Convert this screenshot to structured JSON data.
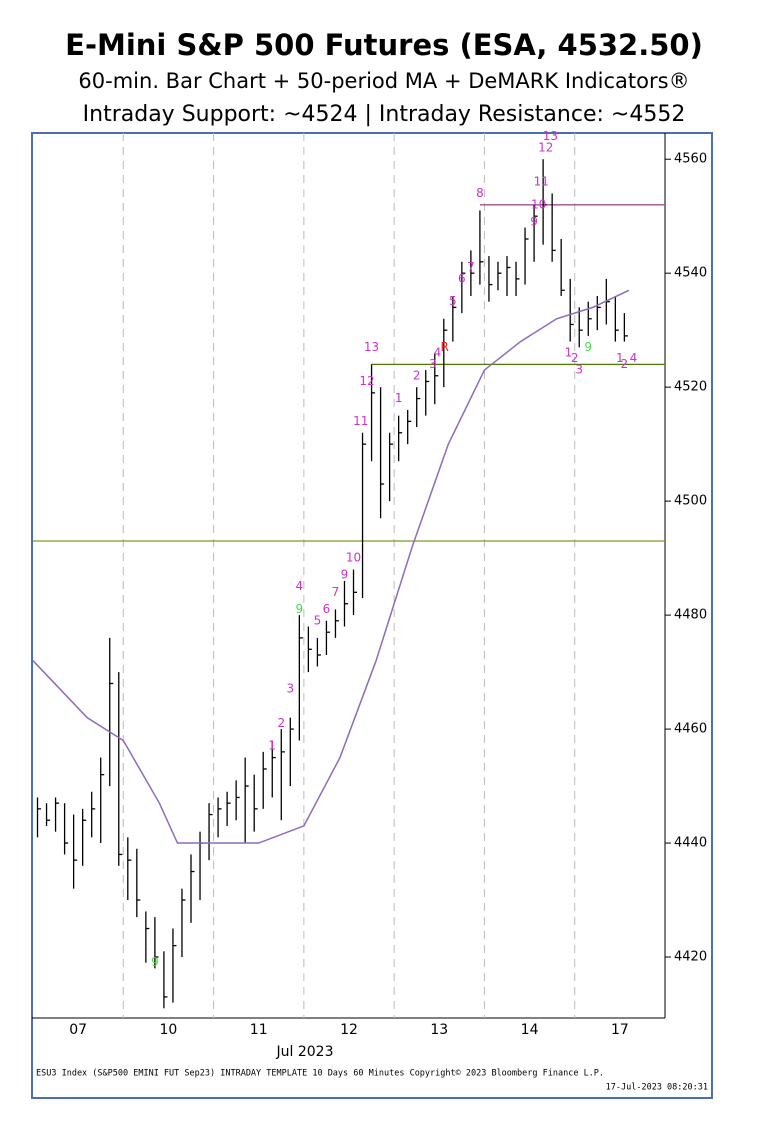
{
  "chart_data": {
    "type": "ohlc",
    "title": "E-Mini S&P 500 Futures (ESA, 4532.50)",
    "subtitle": "60-min. Bar Chart + 50-period MA + DeMARK Indicators®",
    "subtitle2": "Intraday Support: ~4524 | Intraday Resistance: ~4552",
    "xlabel": "Jul 2023",
    "footer": "ESU3 Index (S&P500 EMINI FUT  Sep23) INTRADAY TEMPLATE 10 Days 60 Minutes   Copyright© 2023 Bloomberg Finance L.P.",
    "footer2": "17-Jul-2023 08:20:31",
    "xlim": [
      0,
      70
    ],
    "xticks": [
      {
        "value": 5,
        "label": "07"
      },
      {
        "value": 15,
        "label": "10"
      },
      {
        "value": 25,
        "label": "11"
      },
      {
        "value": 35,
        "label": "12"
      },
      {
        "value": 45,
        "label": "13"
      },
      {
        "value": 55,
        "label": "14"
      },
      {
        "value": 65,
        "label": "17"
      }
    ],
    "day_breaks": [
      10,
      20,
      30,
      40,
      50,
      60
    ],
    "ylim": [
      4409.3,
      4564.6
    ],
    "yticks": [
      4420,
      4440,
      4460,
      4480,
      4500,
      4520,
      4540,
      4560
    ],
    "bars": {
      "x": [
        0.5,
        1.5,
        2.5,
        3.5,
        4.5,
        5.5,
        6.5,
        7.5,
        8.5,
        9.5,
        10.5,
        11.5,
        12.5,
        13.5,
        14.5,
        15.5,
        16.5,
        17.5,
        18.5,
        19.5,
        20.5,
        21.5,
        22.5,
        23.5,
        24.5,
        25.5,
        26.5,
        27.5,
        28.5,
        29.5,
        30.5,
        31.5,
        32.5,
        33.5,
        34.5,
        35.5,
        36.5,
        37.5,
        38.5,
        39.5,
        40.5,
        41.5,
        42.5,
        43.5,
        44.5,
        45.5,
        46.5,
        47.5,
        48.5,
        49.5,
        50.5,
        51.5,
        52.5,
        53.5,
        54.5,
        55.5,
        56.5,
        57.5,
        58.5,
        59.5,
        60.5,
        61.5,
        62.5,
        63.5,
        64.5,
        65.5
      ],
      "high": [
        4448,
        4447,
        4448,
        4447,
        4445,
        4446,
        4449,
        4455,
        4476,
        4470,
        4441,
        4439,
        4428,
        4427,
        4421,
        4425,
        4432,
        4438,
        4442,
        4447,
        4448,
        4449,
        4451,
        4455,
        4452,
        4456,
        4458,
        4460,
        4462,
        4480,
        4478,
        4476,
        4479,
        4481,
        4486,
        4488,
        4512,
        4524,
        4520,
        4512,
        4515,
        4516,
        4520,
        4523,
        4526,
        4532,
        4536,
        4542,
        4544,
        4551,
        4543,
        4542,
        4543,
        4542,
        4548,
        4552,
        4560,
        4554,
        4546,
        4539,
        4534,
        4535,
        4536,
        4539,
        4536,
        4533
      ],
      "low": [
        4441,
        4443,
        4442,
        4438,
        4432,
        4436,
        4441,
        4440,
        4450,
        4436,
        4430,
        4427,
        4419,
        4418,
        4411,
        4412,
        4420,
        4426,
        4430,
        4437,
        4441,
        4443,
        4444,
        4440,
        4442,
        4446,
        4448,
        4444,
        4450,
        4458,
        4470,
        4471,
        4473,
        4476,
        4478,
        4480,
        4483,
        4507,
        4497,
        4500,
        4507,
        4510,
        4513,
        4515,
        4517,
        4520,
        4528,
        4533,
        4536,
        4538,
        4535,
        4537,
        4536,
        4536,
        4538,
        4542,
        4545,
        4542,
        4536,
        4528,
        4527,
        4529,
        4530,
        4531,
        4528,
        4528
      ],
      "close": [
        4446,
        4444,
        4447,
        4440,
        4437,
        4444,
        4446,
        4452,
        4468,
        4438,
        4437,
        4430,
        4425,
        4420,
        4413,
        4422,
        4430,
        4435,
        4440,
        4445,
        4446,
        4447,
        4448,
        4450,
        4446,
        4453,
        4455,
        4456,
        4460,
        4476,
        4474,
        4473,
        4477,
        4479,
        4482,
        4484,
        4510,
        4519,
        4503,
        4510,
        4512,
        4514,
        4518,
        4521,
        4522,
        4530,
        4534,
        4540,
        4540,
        4542,
        4538,
        4540,
        4541,
        4539,
        4546,
        4550,
        4552,
        4544,
        4537,
        4531,
        4530,
        4532,
        4534,
        4535,
        4530,
        4529
      ],
      "color": "#000000"
    },
    "ma": {
      "x": [
        0,
        6,
        10,
        14,
        16,
        20,
        25,
        30,
        34,
        38,
        42,
        46,
        50,
        54,
        58,
        62,
        66
      ],
      "values": [
        4472,
        4462,
        4458,
        4447,
        4440,
        4440,
        4440,
        4443,
        4455,
        4472,
        4492,
        4510,
        4523,
        4528,
        4532,
        4534,
        4537
      ],
      "color": "#8e6bb8"
    },
    "levels": [
      {
        "value": 4493,
        "from": 0,
        "color": "#7a9a2a"
      },
      {
        "value": 4524,
        "from": 37.5,
        "color": "#4d7a00"
      },
      {
        "value": 4552,
        "from": 49.5,
        "color": "#a0508f"
      }
    ],
    "annotations": [
      {
        "x": 13.5,
        "y": 4419,
        "label": "9",
        "color": "#44dd44"
      },
      {
        "x": 26.5,
        "y": 4457,
        "label": "1",
        "color": "#cc33cc"
      },
      {
        "x": 27.5,
        "y": 4461,
        "label": "2",
        "color": "#cc33cc"
      },
      {
        "x": 28.5,
        "y": 4467,
        "label": "3",
        "color": "#cc33cc"
      },
      {
        "x": 29.5,
        "y": 4485,
        "label": "4",
        "color": "#cc33cc"
      },
      {
        "x": 29.5,
        "y": 4481,
        "label": "9",
        "color": "#44dd44"
      },
      {
        "x": 31.5,
        "y": 4479,
        "label": "5",
        "color": "#cc33cc"
      },
      {
        "x": 32.5,
        "y": 4481,
        "label": "6",
        "color": "#cc33cc"
      },
      {
        "x": 33.5,
        "y": 4484,
        "label": "7",
        "color": "#cc33cc"
      },
      {
        "x": 34.5,
        "y": 4487,
        "label": "9",
        "color": "#cc33cc"
      },
      {
        "x": 35.5,
        "y": 4490,
        "label": "10",
        "color": "#cc33cc"
      },
      {
        "x": 36.3,
        "y": 4514,
        "label": "11",
        "color": "#cc33cc"
      },
      {
        "x": 37.0,
        "y": 4521,
        "label": "12",
        "color": "#cc33cc"
      },
      {
        "x": 37.5,
        "y": 4527,
        "label": "13",
        "color": "#cc33cc"
      },
      {
        "x": 40.5,
        "y": 4518,
        "label": "1",
        "color": "#cc33cc"
      },
      {
        "x": 42.5,
        "y": 4522,
        "label": "2",
        "color": "#cc33cc"
      },
      {
        "x": 44.3,
        "y": 4524,
        "label": "3",
        "color": "#cc33cc"
      },
      {
        "x": 44.8,
        "y": 4526,
        "label": "4",
        "color": "#cc33cc"
      },
      {
        "x": 45.6,
        "y": 4527,
        "label": "R",
        "color": "#dd2222"
      },
      {
        "x": 46.5,
        "y": 4535,
        "label": "5",
        "color": "#cc33cc"
      },
      {
        "x": 47.5,
        "y": 4539,
        "label": "6",
        "color": "#cc33cc"
      },
      {
        "x": 48.5,
        "y": 4541,
        "label": "7",
        "color": "#cc33cc"
      },
      {
        "x": 49.5,
        "y": 4554,
        "label": "8",
        "color": "#cc33cc"
      },
      {
        "x": 55.5,
        "y": 4549,
        "label": "9",
        "color": "#cc33cc"
      },
      {
        "x": 56.0,
        "y": 4552,
        "label": "10",
        "color": "#cc33cc"
      },
      {
        "x": 56.3,
        "y": 4556,
        "label": "11",
        "color": "#cc33cc"
      },
      {
        "x": 56.8,
        "y": 4562,
        "label": "12",
        "color": "#cc33cc"
      },
      {
        "x": 57.3,
        "y": 4564,
        "label": "13",
        "color": "#cc33cc"
      },
      {
        "x": 59.3,
        "y": 4526,
        "label": "1",
        "color": "#cc33cc"
      },
      {
        "x": 60.0,
        "y": 4525,
        "label": "2",
        "color": "#cc33cc"
      },
      {
        "x": 60.5,
        "y": 4523,
        "label": "3",
        "color": "#cc33cc"
      },
      {
        "x": 61.5,
        "y": 4527,
        "label": "9",
        "color": "#44dd44"
      },
      {
        "x": 65.0,
        "y": 4525,
        "label": "1",
        "color": "#cc33cc"
      },
      {
        "x": 65.5,
        "y": 4524,
        "label": "2",
        "color": "#cc33cc"
      },
      {
        "x": 66.5,
        "y": 4525,
        "label": "4",
        "color": "#cc33cc"
      }
    ]
  }
}
